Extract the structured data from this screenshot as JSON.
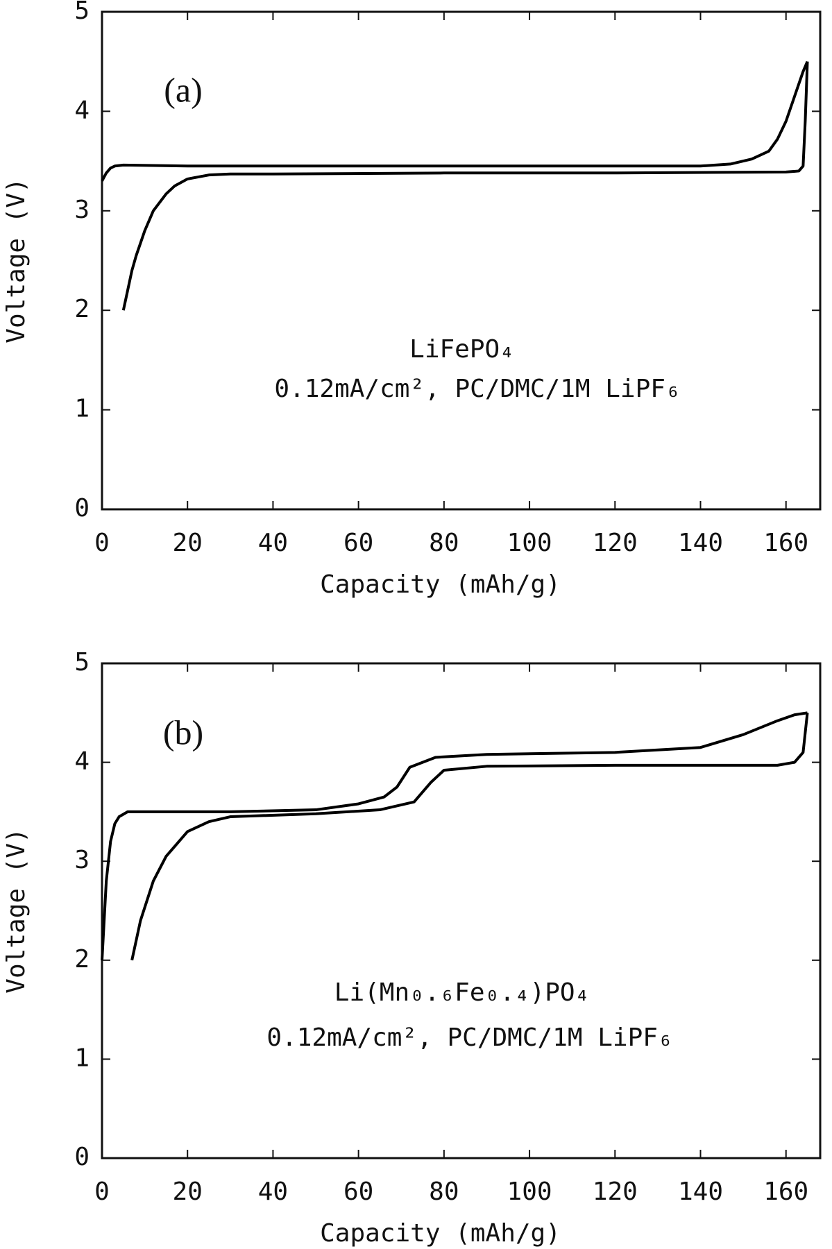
{
  "chart_data": [
    {
      "type": "line",
      "annotations": [
        "(a)",
        "LiFePO₄",
        "0.12mA/cm², PC/DMC/1M LiPF₆"
      ],
      "xlabel": "Capacity (mAh/g)",
      "ylabel": "Voltage (V)",
      "xlim": [
        0,
        168
      ],
      "ylim": [
        0,
        5
      ],
      "xticks": [
        0,
        20,
        40,
        60,
        80,
        100,
        120,
        140,
        160
      ],
      "yticks": [
        0,
        1,
        2,
        3,
        4,
        5
      ],
      "series": [
        {
          "color": "#000000",
          "x": [
            0,
            1,
            2,
            3,
            5,
            20,
            60,
            100,
            140,
            147,
            152,
            156,
            158,
            160,
            162,
            164,
            165
          ],
          "values": [
            3.3,
            3.38,
            3.43,
            3.45,
            3.46,
            3.45,
            3.45,
            3.45,
            3.45,
            3.47,
            3.52,
            3.6,
            3.72,
            3.9,
            4.15,
            4.4,
            4.5
          ]
        },
        {
          "color": "#000000",
          "x": [
            165,
            164.5,
            164,
            163,
            160,
            120,
            80,
            40,
            30,
            25,
            20,
            17,
            15,
            12,
            10,
            8,
            7,
            6,
            5
          ],
          "values": [
            4.5,
            3.9,
            3.45,
            3.4,
            3.39,
            3.38,
            3.38,
            3.37,
            3.37,
            3.36,
            3.32,
            3.25,
            3.17,
            3.0,
            2.8,
            2.55,
            2.4,
            2.2,
            2.0
          ]
        }
      ]
    },
    {
      "type": "line",
      "annotations": [
        "(b)",
        "Li(Mn₀.₆Fe₀.₄)PO₄",
        "0.12mA/cm², PC/DMC/1M LiPF₆"
      ],
      "xlabel": "Capacity (mAh/g)",
      "ylabel": "Voltage (V)",
      "xlim": [
        0,
        168
      ],
      "ylim": [
        0,
        5
      ],
      "xticks": [
        0,
        20,
        40,
        60,
        80,
        100,
        120,
        140,
        160
      ],
      "yticks": [
        0,
        1,
        2,
        3,
        4,
        5
      ],
      "series": [
        {
          "color": "#000000",
          "x": [
            0,
            1,
            2,
            3,
            4,
            6,
            10,
            30,
            50,
            60,
            66,
            69,
            72,
            78,
            90,
            120,
            140,
            150,
            158,
            162,
            165
          ],
          "values": [
            2.0,
            2.8,
            3.2,
            3.38,
            3.45,
            3.5,
            3.5,
            3.5,
            3.52,
            3.58,
            3.65,
            3.75,
            3.95,
            4.05,
            4.08,
            4.1,
            4.15,
            4.28,
            4.42,
            4.48,
            4.5
          ]
        },
        {
          "color": "#000000",
          "x": [
            165,
            164.5,
            164,
            162,
            158,
            120,
            90,
            80,
            77,
            73,
            65,
            50,
            30,
            25,
            20,
            15,
            12,
            9,
            8,
            7
          ],
          "values": [
            4.5,
            4.3,
            4.1,
            4.0,
            3.97,
            3.97,
            3.96,
            3.92,
            3.8,
            3.6,
            3.52,
            3.48,
            3.45,
            3.4,
            3.3,
            3.05,
            2.8,
            2.4,
            2.2,
            2.0
          ]
        }
      ]
    }
  ]
}
